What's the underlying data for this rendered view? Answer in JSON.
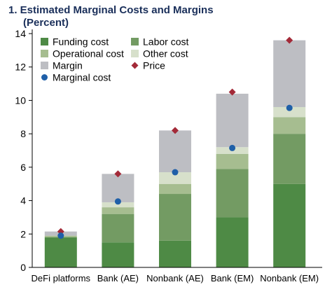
{
  "chart_data": {
    "type": "bar",
    "stacked": true,
    "title": "1. Estimated Marginal Costs and Margins",
    "subtitle": "(Percent)",
    "categories": [
      "DeFi platforms",
      "Bank (AE)",
      "Nonbank (AE)",
      "Bank (EM)",
      "Nonbank (EM)"
    ],
    "ylim": [
      0,
      14
    ],
    "yticks": [
      0,
      2,
      4,
      6,
      8,
      10,
      12,
      14
    ],
    "grid": false,
    "legend_position": "top-left",
    "series": [
      {
        "name": "Funding cost",
        "color": "#4e8a45",
        "values": [
          1.8,
          1.5,
          1.6,
          3.0,
          5.0
        ]
      },
      {
        "name": "Labor cost",
        "color": "#739b63",
        "values": [
          0.0,
          1.7,
          2.8,
          2.9,
          3.0
        ]
      },
      {
        "name": "Operational cost",
        "color": "#a6bd90",
        "values": [
          0.1,
          0.4,
          0.6,
          0.9,
          1.0
        ]
      },
      {
        "name": "Other cost",
        "color": "#d7e0cb",
        "values": [
          0.0,
          0.3,
          0.7,
          0.4,
          0.6
        ]
      },
      {
        "name": "Margin",
        "color": "#bdbec3",
        "values": [
          0.25,
          1.7,
          2.5,
          3.2,
          4.0
        ]
      }
    ],
    "markers": [
      {
        "name": "Price",
        "shape": "diamond",
        "color": "#a32a38",
        "values": [
          2.15,
          5.6,
          8.2,
          10.5,
          13.6
        ]
      },
      {
        "name": "Marginal cost",
        "shape": "circle",
        "color": "#1f5fa8",
        "values": [
          1.9,
          3.95,
          5.7,
          7.15,
          9.55
        ]
      }
    ]
  }
}
